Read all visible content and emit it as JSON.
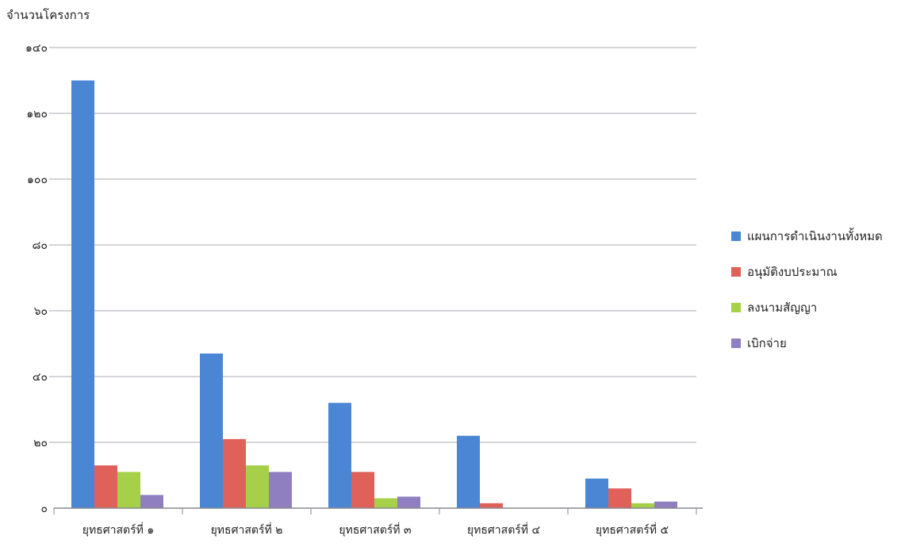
{
  "chart_data": {
    "type": "bar",
    "title": "",
    "ylabel": "จำนวนโครงการ",
    "xlabel": "",
    "ylim": [
      0,
      140
    ],
    "yticks": [
      0,
      20,
      40,
      60,
      80,
      100,
      120,
      140
    ],
    "ytick_labels": [
      "๐",
      "๒๐",
      "๔๐",
      "๖๐",
      "๘๐",
      "๑๐๐",
      "๑๒๐",
      "๑๔๐"
    ],
    "grid": true,
    "legend_position": "right",
    "categories": [
      "ยุทธศาสตร์ที่ ๑",
      "ยุทธศาสตร์ที่ ๒",
      "ยุทธศาสตร์ที่ ๓",
      "ยุทธศาสตร์ที่ ๔",
      "ยุทธศาสตร์ที่ ๕"
    ],
    "series": [
      {
        "name": "แผนการดำเนินงานทั้งหมด",
        "color": "#4a86d4",
        "values": [
          130,
          47,
          32,
          22,
          9
        ]
      },
      {
        "name": "อนุมัติงบประมาณ",
        "color": "#e0605a",
        "values": [
          13,
          21,
          11,
          1.5,
          6
        ]
      },
      {
        "name": "ลงนามสัญญา",
        "color": "#a6d04a",
        "values": [
          11,
          13,
          3,
          0,
          1.5
        ]
      },
      {
        "name": "เบิกจ่าย",
        "color": "#8f7fc0",
        "values": [
          4,
          11,
          3.5,
          0,
          2
        ]
      }
    ]
  }
}
